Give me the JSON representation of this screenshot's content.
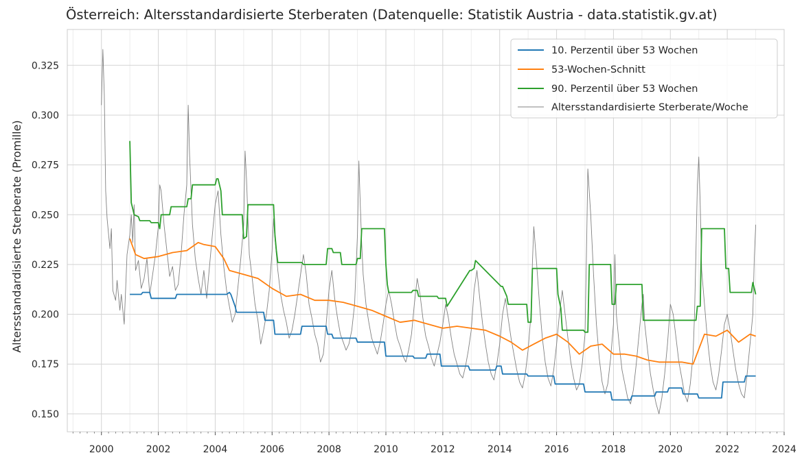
{
  "chart_data": {
    "type": "line",
    "title": "Österreich: Altersstandardisierte Sterberaten (Datenquelle: Statistik Austria - data.statistik.gv.at)",
    "xlabel": "",
    "ylabel": "Altersstandardisierte Sterberate (Promille)",
    "xlim": [
      1998.8,
      2024.0
    ],
    "ylim": [
      0.141,
      0.343
    ],
    "x_ticks": [
      "2000",
      "2002",
      "2004",
      "2006",
      "2008",
      "2010",
      "2012",
      "2014",
      "2016",
      "2018",
      "2020",
      "2022",
      "2024"
    ],
    "y_ticks": [
      "0.150",
      "0.175",
      "0.200",
      "0.225",
      "0.250",
      "0.275",
      "0.300",
      "0.325"
    ],
    "grid": true,
    "legend_position": "top-right",
    "series": [
      {
        "name": "10. Perzentil über 53 Wochen",
        "color": "#1f77b4",
        "x": [
          2001.0,
          2001.4,
          2001.45,
          2001.7,
          2001.75,
          2002.6,
          2002.65,
          2002.75,
          2002.8,
          2004.4,
          2004.5,
          2004.55,
          2004.7,
          2004.75,
          2005.7,
          2005.75,
          2006.05,
          2006.1,
          2007.0,
          2007.05,
          2007.9,
          2007.95,
          2008.1,
          2008.15,
          2008.95,
          2009.0,
          2009.95,
          2010.0,
          2010.95,
          2011.0,
          2011.4,
          2011.45,
          2011.9,
          2011.95,
          2012.9,
          2012.95,
          2013.85,
          2013.9,
          2014.05,
          2014.1,
          2014.95,
          2015.0,
          2015.9,
          2015.95,
          2016.95,
          2017.0,
          2017.9,
          2017.95,
          2018.6,
          2018.65,
          2019.45,
          2019.5,
          2019.9,
          2019.95,
          2020.4,
          2020.45,
          2020.95,
          2021.0,
          2021.8,
          2021.85,
          2022.6,
          2022.65,
          2023.0
        ],
        "values": [
          0.21,
          0.21,
          0.211,
          0.211,
          0.208,
          0.208,
          0.21,
          0.21,
          0.21,
          0.21,
          0.211,
          0.21,
          0.204,
          0.201,
          0.201,
          0.197,
          0.197,
          0.19,
          0.19,
          0.194,
          0.194,
          0.19,
          0.19,
          0.188,
          0.188,
          0.186,
          0.186,
          0.179,
          0.179,
          0.178,
          0.178,
          0.18,
          0.18,
          0.174,
          0.174,
          0.172,
          0.172,
          0.174,
          0.174,
          0.17,
          0.17,
          0.169,
          0.169,
          0.165,
          0.165,
          0.161,
          0.161,
          0.157,
          0.157,
          0.159,
          0.159,
          0.161,
          0.161,
          0.163,
          0.163,
          0.16,
          0.16,
          0.158,
          0.158,
          0.166,
          0.166,
          0.169,
          0.169
        ]
      },
      {
        "name": "53-Wochen-Schnitt",
        "color": "#ff7f0e",
        "x": [
          2001.0,
          2001.2,
          2001.5,
          2002.0,
          2002.5,
          2003.0,
          2003.4,
          2003.6,
          2004.0,
          2004.3,
          2004.5,
          2005.0,
          2005.5,
          2006.0,
          2006.5,
          2007.0,
          2007.5,
          2008.0,
          2008.5,
          2009.0,
          2009.5,
          2010.0,
          2010.5,
          2011.0,
          2011.5,
          2012.0,
          2012.5,
          2013.0,
          2013.5,
          2014.0,
          2014.4,
          2014.8,
          2015.2,
          2015.6,
          2016.0,
          2016.4,
          2016.8,
          2017.2,
          2017.6,
          2018.0,
          2018.4,
          2018.8,
          2019.2,
          2019.6,
          2020.0,
          2020.4,
          2020.8,
          2021.2,
          2021.6,
          2022.0,
          2022.4,
          2022.8,
          2023.0
        ],
        "values": [
          0.238,
          0.23,
          0.228,
          0.229,
          0.231,
          0.232,
          0.236,
          0.235,
          0.234,
          0.228,
          0.222,
          0.22,
          0.218,
          0.213,
          0.209,
          0.21,
          0.207,
          0.207,
          0.206,
          0.204,
          0.202,
          0.199,
          0.196,
          0.197,
          0.195,
          0.193,
          0.194,
          0.193,
          0.192,
          0.189,
          0.186,
          0.182,
          0.185,
          0.188,
          0.19,
          0.186,
          0.18,
          0.184,
          0.185,
          0.18,
          0.18,
          0.179,
          0.177,
          0.176,
          0.176,
          0.176,
          0.175,
          0.19,
          0.189,
          0.192,
          0.186,
          0.19,
          0.189
        ]
      },
      {
        "name": "90. Perzentil über 53 Wochen",
        "color": "#2ca02c",
        "x": [
          2001.0,
          2001.05,
          2001.15,
          2001.3,
          2001.35,
          2001.7,
          2001.75,
          2002.0,
          2002.05,
          2002.1,
          2002.4,
          2002.45,
          2003.0,
          2003.05,
          2003.15,
          2003.2,
          2004.0,
          2004.05,
          2004.1,
          2004.2,
          2004.25,
          2004.95,
          2005.0,
          2005.1,
          2005.15,
          2006.05,
          2006.1,
          2006.15,
          2006.2,
          2007.05,
          2007.1,
          2007.9,
          2007.95,
          2008.1,
          2008.15,
          2008.4,
          2008.45,
          2008.95,
          2009.0,
          2009.1,
          2009.15,
          2009.95,
          2010.0,
          2010.05,
          2010.1,
          2010.9,
          2010.95,
          2011.1,
          2011.15,
          2011.8,
          2011.85,
          2012.1,
          2012.15,
          2012.95,
          2013.0,
          2013.1,
          2013.15,
          2014.05,
          2014.1,
          2014.25,
          2014.3,
          2014.95,
          2015.0,
          2015.1,
          2015.15,
          2016.0,
          2016.05,
          2016.15,
          2016.2,
          2016.95,
          2017.0,
          2017.1,
          2017.15,
          2017.9,
          2017.95,
          2018.05,
          2018.1,
          2019.0,
          2019.05,
          2019.25,
          2019.3,
          2020.15,
          2020.2,
          2020.9,
          2020.95,
          2021.05,
          2021.1,
          2021.9,
          2021.95,
          2022.05,
          2022.1,
          2022.85,
          2022.9,
          2023.0
        ],
        "values": [
          0.287,
          0.256,
          0.25,
          0.249,
          0.247,
          0.247,
          0.246,
          0.246,
          0.243,
          0.25,
          0.25,
          0.254,
          0.254,
          0.258,
          0.258,
          0.265,
          0.265,
          0.268,
          0.268,
          0.262,
          0.25,
          0.25,
          0.238,
          0.239,
          0.255,
          0.255,
          0.24,
          0.232,
          0.226,
          0.226,
          0.225,
          0.225,
          0.233,
          0.233,
          0.231,
          0.231,
          0.225,
          0.225,
          0.228,
          0.228,
          0.243,
          0.243,
          0.225,
          0.215,
          0.211,
          0.211,
          0.212,
          0.212,
          0.209,
          0.209,
          0.208,
          0.208,
          0.204,
          0.222,
          0.222,
          0.223,
          0.227,
          0.214,
          0.214,
          0.209,
          0.205,
          0.205,
          0.196,
          0.196,
          0.223,
          0.223,
          0.21,
          0.203,
          0.192,
          0.192,
          0.191,
          0.191,
          0.225,
          0.225,
          0.205,
          0.205,
          0.215,
          0.215,
          0.197,
          0.197,
          0.197,
          0.197,
          0.197,
          0.197,
          0.204,
          0.204,
          0.243,
          0.243,
          0.223,
          0.223,
          0.211,
          0.211,
          0.216,
          0.21
        ]
      },
      {
        "name": "Altersstandardisierte Sterberate/Woche",
        "color": "#808080",
        "x": [
          2000.0,
          2000.05,
          2000.1,
          2000.15,
          2000.2,
          2000.3,
          2000.35,
          2000.4,
          2000.5,
          2000.55,
          2000.65,
          2000.7,
          2000.8,
          2000.9,
          2001.0,
          2001.05,
          2001.1,
          2001.15,
          2001.2,
          2001.3,
          2001.4,
          2001.5,
          2001.6,
          2001.7,
          2001.8,
          2001.9,
          2002.0,
          2002.05,
          2002.1,
          2002.2,
          2002.3,
          2002.4,
          2002.5,
          2002.6,
          2002.7,
          2002.8,
          2002.9,
          2003.0,
          2003.05,
          2003.1,
          2003.15,
          2003.2,
          2003.3,
          2003.4,
          2003.5,
          2003.6,
          2003.7,
          2003.8,
          2003.9,
          2004.0,
          2004.1,
          2004.2,
          2004.3,
          2004.4,
          2004.5,
          2004.6,
          2004.7,
          2004.8,
          2004.9,
          2005.0,
          2005.05,
          2005.1,
          2005.15,
          2005.2,
          2005.3,
          2005.4,
          2005.5,
          2005.6,
          2005.7,
          2005.8,
          2005.9,
          2006.0,
          2006.05,
          2006.1,
          2006.2,
          2006.3,
          2006.4,
          2006.5,
          2006.6,
          2006.7,
          2006.8,
          2006.9,
          2007.0,
          2007.1,
          2007.2,
          2007.3,
          2007.4,
          2007.5,
          2007.6,
          2007.7,
          2007.8,
          2007.9,
          2008.0,
          2008.1,
          2008.2,
          2008.3,
          2008.4,
          2008.5,
          2008.6,
          2008.7,
          2008.8,
          2008.9,
          2009.0,
          2009.05,
          2009.1,
          2009.15,
          2009.2,
          2009.3,
          2009.4,
          2009.5,
          2009.6,
          2009.7,
          2009.8,
          2009.9,
          2010.0,
          2010.1,
          2010.2,
          2010.3,
          2010.4,
          2010.5,
          2010.6,
          2010.7,
          2010.8,
          2010.9,
          2011.0,
          2011.1,
          2011.2,
          2011.3,
          2011.4,
          2011.5,
          2011.6,
          2011.7,
          2011.8,
          2011.9,
          2012.0,
          2012.1,
          2012.2,
          2012.3,
          2012.4,
          2012.5,
          2012.6,
          2012.7,
          2012.8,
          2012.9,
          2013.0,
          2013.1,
          2013.2,
          2013.3,
          2013.4,
          2013.5,
          2013.6,
          2013.7,
          2013.8,
          2013.9,
          2014.0,
          2014.1,
          2014.2,
          2014.3,
          2014.4,
          2014.5,
          2014.6,
          2014.7,
          2014.8,
          2014.9,
          2015.0,
          2015.1,
          2015.15,
          2015.2,
          2015.3,
          2015.4,
          2015.5,
          2015.6,
          2015.7,
          2015.8,
          2015.9,
          2016.0,
          2016.1,
          2016.2,
          2016.3,
          2016.4,
          2016.5,
          2016.6,
          2016.7,
          2016.8,
          2016.9,
          2017.0,
          2017.05,
          2017.1,
          2017.2,
          2017.3,
          2017.4,
          2017.5,
          2017.6,
          2017.7,
          2017.8,
          2017.9,
          2018.0,
          2018.05,
          2018.1,
          2018.2,
          2018.3,
          2018.4,
          2018.5,
          2018.6,
          2018.7,
          2018.8,
          2018.9,
          2019.0,
          2019.05,
          2019.1,
          2019.2,
          2019.3,
          2019.4,
          2019.5,
          2019.6,
          2019.7,
          2019.8,
          2019.9,
          2020.0,
          2020.1,
          2020.2,
          2020.3,
          2020.4,
          2020.5,
          2020.6,
          2020.7,
          2020.8,
          2020.85,
          2020.9,
          2020.95,
          2021.0,
          2021.05,
          2021.1,
          2021.2,
          2021.3,
          2021.4,
          2021.5,
          2021.6,
          2021.7,
          2021.8,
          2021.9,
          2022.0,
          2022.1,
          2022.2,
          2022.3,
          2022.4,
          2022.5,
          2022.6,
          2022.7,
          2022.8,
          2022.9,
          2022.95,
          2023.0
        ],
        "values": [
          0.305,
          0.333,
          0.31,
          0.262,
          0.248,
          0.233,
          0.243,
          0.212,
          0.207,
          0.217,
          0.202,
          0.21,
          0.195,
          0.23,
          0.24,
          0.25,
          0.236,
          0.255,
          0.222,
          0.227,
          0.213,
          0.218,
          0.228,
          0.21,
          0.22,
          0.23,
          0.244,
          0.265,
          0.262,
          0.245,
          0.232,
          0.219,
          0.224,
          0.212,
          0.215,
          0.23,
          0.25,
          0.265,
          0.305,
          0.28,
          0.262,
          0.245,
          0.228,
          0.218,
          0.21,
          0.222,
          0.208,
          0.224,
          0.24,
          0.255,
          0.262,
          0.24,
          0.224,
          0.212,
          0.204,
          0.196,
          0.2,
          0.214,
          0.228,
          0.245,
          0.282,
          0.268,
          0.248,
          0.23,
          0.218,
          0.205,
          0.197,
          0.185,
          0.192,
          0.2,
          0.212,
          0.232,
          0.248,
          0.238,
          0.222,
          0.21,
          0.202,
          0.196,
          0.188,
          0.192,
          0.2,
          0.21,
          0.22,
          0.23,
          0.22,
          0.205,
          0.198,
          0.19,
          0.185,
          0.176,
          0.18,
          0.195,
          0.212,
          0.222,
          0.208,
          0.198,
          0.19,
          0.186,
          0.182,
          0.185,
          0.192,
          0.205,
          0.24,
          0.277,
          0.255,
          0.235,
          0.22,
          0.205,
          0.196,
          0.188,
          0.184,
          0.18,
          0.186,
          0.195,
          0.205,
          0.212,
          0.205,
          0.196,
          0.188,
          0.184,
          0.179,
          0.176,
          0.182,
          0.19,
          0.205,
          0.218,
          0.21,
          0.198,
          0.189,
          0.184,
          0.178,
          0.174,
          0.18,
          0.186,
          0.195,
          0.205,
          0.198,
          0.188,
          0.18,
          0.175,
          0.17,
          0.168,
          0.174,
          0.182,
          0.192,
          0.212,
          0.222,
          0.208,
          0.195,
          0.185,
          0.176,
          0.17,
          0.167,
          0.175,
          0.185,
          0.2,
          0.208,
          0.198,
          0.188,
          0.18,
          0.172,
          0.166,
          0.163,
          0.17,
          0.182,
          0.2,
          0.226,
          0.244,
          0.225,
          0.205,
          0.188,
          0.176,
          0.168,
          0.164,
          0.172,
          0.185,
          0.2,
          0.212,
          0.2,
          0.188,
          0.176,
          0.168,
          0.162,
          0.165,
          0.175,
          0.19,
          0.23,
          0.273,
          0.25,
          0.22,
          0.195,
          0.178,
          0.166,
          0.16,
          0.165,
          0.178,
          0.195,
          0.23,
          0.2,
          0.185,
          0.172,
          0.165,
          0.158,
          0.155,
          0.162,
          0.175,
          0.19,
          0.205,
          0.21,
          0.195,
          0.182,
          0.17,
          0.162,
          0.155,
          0.15,
          0.158,
          0.17,
          0.185,
          0.205,
          0.2,
          0.188,
          0.176,
          0.168,
          0.16,
          0.156,
          0.165,
          0.18,
          0.2,
          0.232,
          0.265,
          0.279,
          0.255,
          0.222,
          0.205,
          0.188,
          0.175,
          0.166,
          0.162,
          0.17,
          0.182,
          0.195,
          0.2,
          0.192,
          0.182,
          0.172,
          0.165,
          0.16,
          0.158,
          0.17,
          0.185,
          0.2,
          0.228,
          0.245
        ]
      }
    ]
  }
}
